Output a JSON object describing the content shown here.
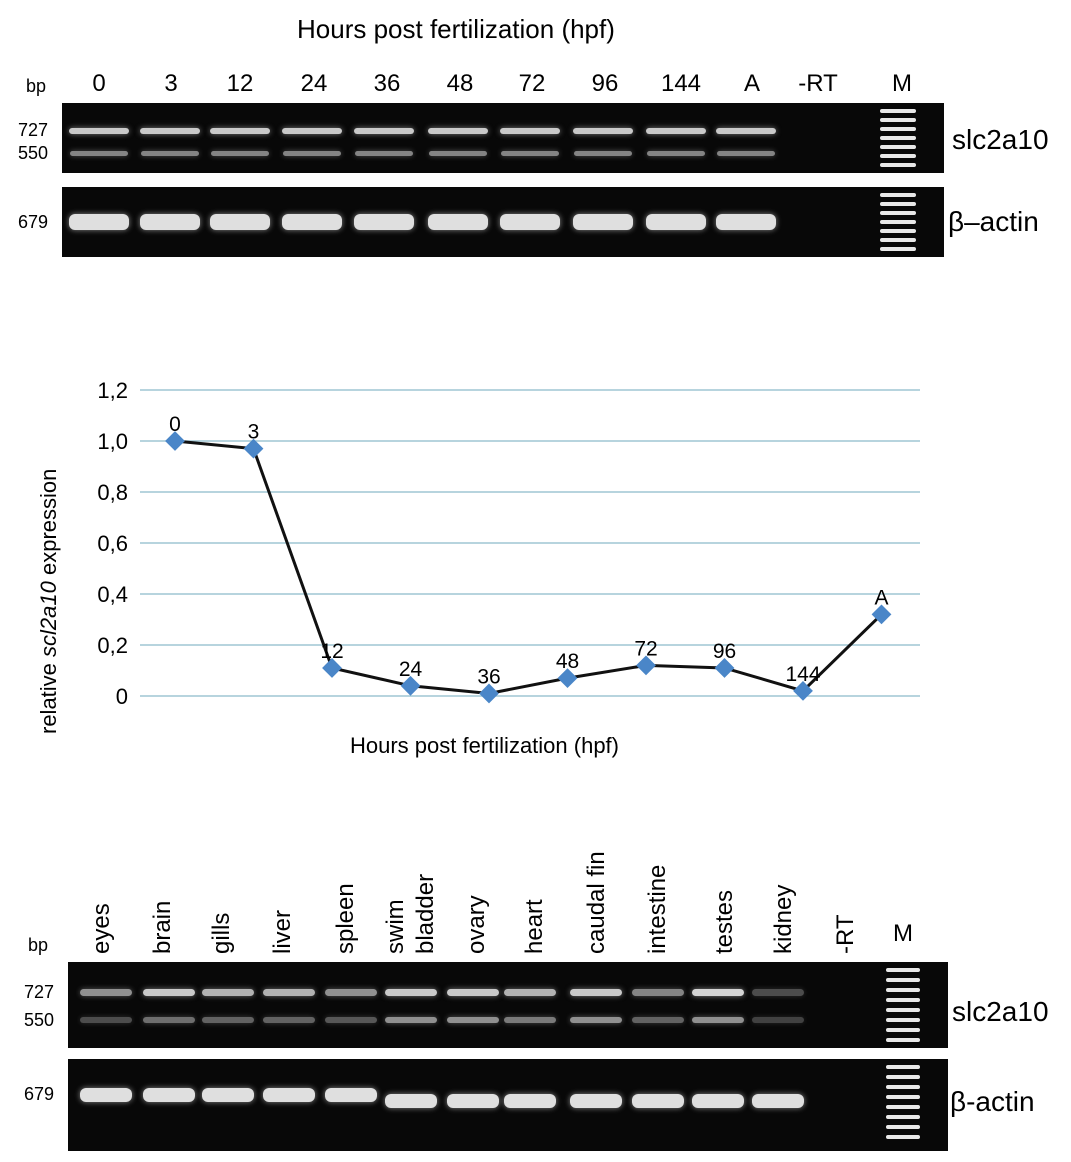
{
  "panel_a": {
    "title": "Hours post fertilization (hpf)",
    "bp_label": "bp",
    "lanes": [
      "0",
      "3",
      "12",
      "24",
      "36",
      "48",
      "72",
      "96",
      "144",
      "A",
      "-RT",
      "M"
    ],
    "top_gel": {
      "sizes": [
        "727",
        "550"
      ],
      "gene": "slc2a10"
    },
    "bottom_gel": {
      "sizes": [
        "679"
      ],
      "gene": "β–actin"
    }
  },
  "chart_data": {
    "type": "line",
    "title": "",
    "xlabel": "Hours post fertilization (hpf)",
    "ylabel_prefix": "relative ",
    "ylabel_gene": "scl2a10",
    "ylabel_suffix": " expression",
    "categories": [
      "0",
      "3",
      "12",
      "24",
      "36",
      "48",
      "72",
      "96",
      "144",
      "A"
    ],
    "values": [
      1.0,
      0.97,
      0.11,
      0.04,
      0.01,
      0.07,
      0.12,
      0.11,
      0.02,
      0.32
    ],
    "point_labels": [
      "0",
      "3",
      "12",
      "24",
      "36",
      "48",
      "72",
      "96",
      "144",
      "A"
    ],
    "yticks": [
      "0",
      "0,2",
      "0,4",
      "0,6",
      "0,8",
      "1,0",
      "1,2"
    ],
    "ylim": [
      0,
      1.2
    ],
    "grid": true,
    "line_color": "#111111",
    "marker_color": "#4a86c8",
    "grid_color": "#9fc6d4"
  },
  "panel_c": {
    "bp_label": "bp",
    "tissues": [
      "eyes",
      "brain",
      "gills",
      "liver",
      "spleen",
      "swim",
      "bladder",
      "ovary",
      "heart",
      "caudal fin",
      "intestine",
      "testes",
      "kidney",
      "-RT",
      "M"
    ],
    "top_gel": {
      "sizes": [
        "727",
        "550"
      ],
      "gene": "slc2a10"
    },
    "bottom_gel": {
      "sizes": [
        "679"
      ],
      "gene": "β-actin"
    }
  }
}
